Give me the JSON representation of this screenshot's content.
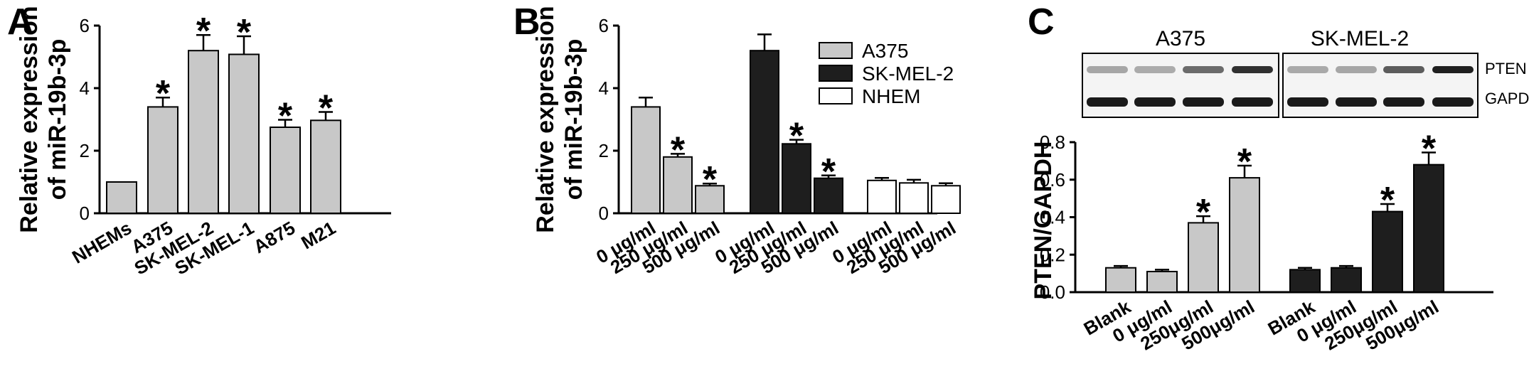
{
  "panels": {
    "a": "A",
    "b": "B",
    "c": "C"
  },
  "colors": {
    "A375": "#c8c8c8",
    "SK-MEL-2": "#1e1e1e",
    "NHEM": "#ffffff",
    "stroke": "#000000"
  },
  "star_symbol": "*",
  "blot": {
    "groups": [
      "A375",
      "SK-MEL-2"
    ],
    "bands": [
      "PTEN",
      "GAPDH"
    ]
  },
  "chart_data": [
    {
      "type": "bar",
      "panel": "A",
      "ylabel_line1": "Relative expression",
      "ylabel_line2": "of  miR-19b-3p",
      "ylim": [
        0,
        6
      ],
      "yticks": [
        0,
        2,
        4,
        6
      ],
      "categories": [
        "NHEMs",
        "A375",
        "SK-MEL-2",
        "SK-MEL-1",
        "A875",
        "M21"
      ],
      "values": [
        1.0,
        3.4,
        5.2,
        5.08,
        2.75,
        2.97
      ],
      "errors": [
        0,
        0.3,
        0.5,
        0.58,
        0.24,
        0.27
      ],
      "significant": [
        false,
        true,
        true,
        true,
        true,
        true
      ]
    },
    {
      "type": "bar",
      "panel": "B",
      "ylabel_line1": "Relative expression",
      "ylabel_line2": "of  miR-19b-3p",
      "ylim": [
        0,
        6
      ],
      "yticks": [
        0,
        2,
        4,
        6
      ],
      "legend_position": "top-right",
      "categories": [
        "0 μg/ml",
        "250 μg/ml",
        "500 μg/ml"
      ],
      "series": [
        {
          "name": "A375",
          "values": [
            3.4,
            1.8,
            0.88
          ],
          "errors": [
            0.3,
            0.1,
            0.07
          ],
          "significant": [
            false,
            true,
            true
          ]
        },
        {
          "name": "SK-MEL-2",
          "values": [
            5.2,
            2.22,
            1.12
          ],
          "errors": [
            0.52,
            0.13,
            0.09
          ],
          "significant": [
            false,
            true,
            true
          ]
        },
        {
          "name": "NHEM",
          "values": [
            1.05,
            0.97,
            0.88
          ],
          "errors": [
            0.08,
            0.1,
            0.08
          ],
          "significant": [
            false,
            false,
            false
          ]
        }
      ]
    },
    {
      "type": "bar",
      "panel": "C",
      "ylabel": "PTEN/GAPDH",
      "ylim": [
        0,
        0.8
      ],
      "yticks": [
        "0.0",
        "0.2",
        "0.4",
        "0.6",
        "0.8"
      ],
      "categories": [
        "Blank",
        "0 μg/ml",
        "250μg/ml",
        "500μg/ml"
      ],
      "series": [
        {
          "name": "A375",
          "values": [
            0.13,
            0.11,
            0.37,
            0.61
          ],
          "errors": [
            0.01,
            0.01,
            0.035,
            0.065
          ],
          "significant": [
            false,
            false,
            true,
            true
          ]
        },
        {
          "name": "SK-MEL-2",
          "values": [
            0.12,
            0.13,
            0.43,
            0.68
          ],
          "errors": [
            0.01,
            0.01,
            0.04,
            0.065
          ],
          "significant": [
            false,
            false,
            true,
            true
          ]
        }
      ]
    }
  ]
}
